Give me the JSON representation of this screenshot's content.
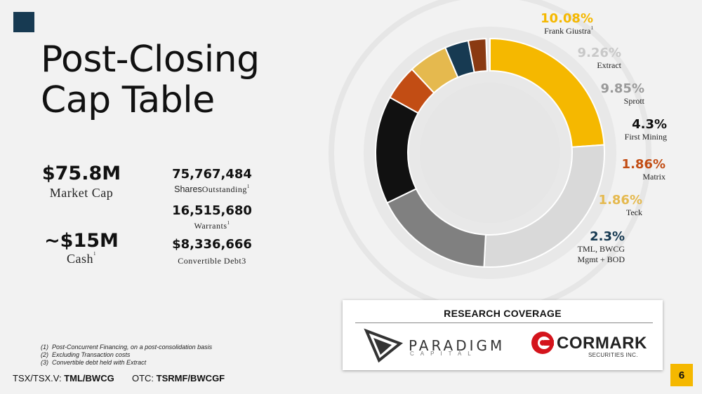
{
  "title": {
    "line1": "Post-Closing",
    "line2": "Cap Table"
  },
  "stats": {
    "market_cap_value": "$75.8M",
    "market_cap_label": "Market Cap",
    "cash_value": "~$15M",
    "cash_label": "Cash",
    "cash_sup": "1",
    "shares_value": "75,767,484",
    "shares_label_a": "Shares",
    "shares_label_b": "Outstanding",
    "shares_sup": "1",
    "warrants_value": "16,515,680",
    "warrants_label": "Warrants",
    "warrants_sup": "1",
    "debt_value": "$8,336,666",
    "debt_label": "Convertible Debt3"
  },
  "chart_data": {
    "type": "pie",
    "style": "donut",
    "slices": [
      {
        "pct": 10.08,
        "label": "Frank Giustra",
        "sup": "1",
        "color": "#f5b800",
        "label_color": "#f5b800"
      },
      {
        "pct": 9.26,
        "label": "Extract",
        "color": "#d9d9d9",
        "label_color": "#c8c8c8"
      },
      {
        "pct": 9.85,
        "label": "Sprott",
        "color": "#808080",
        "label_color": "#9a9a9a"
      },
      {
        "pct": 4.3,
        "label": "First Mining",
        "color": "#111111",
        "label_color": "#111111"
      },
      {
        "pct": 1.86,
        "label": "Matrix",
        "color": "#c24d14",
        "label_color": "#c24d14"
      },
      {
        "pct": 1.86,
        "label": "Teck",
        "color": "#e5b94e",
        "label_color": "#e5b94e"
      },
      {
        "pct": 2.3,
        "label": "TML, BWCG Mgmt + BOD",
        "color": "#173a52",
        "label_color": "#173a52"
      },
      {
        "pct": null,
        "label": "",
        "color": "#8a3a12",
        "label_color": ""
      }
    ]
  },
  "research": {
    "title": "RESEARCH COVERAGE",
    "paradigm_name": "PARADIGM",
    "paradigm_sub": "CAPITAL",
    "cormark_name": "CORMARK",
    "cormark_sub": "SECURITIES INC."
  },
  "notes": [
    {
      "num": "(1)",
      "text": "Post-Concurrent Financing, on a post-consolidation  basis"
    },
    {
      "num": "(2)",
      "text": "Excluding Transaction costs"
    },
    {
      "num": "(3)",
      "text": "Convertible debt held  with Extract"
    }
  ],
  "ticker": {
    "tsx_label": "TSX/TSX.V:",
    "tsx_value": "TML/BWCG",
    "otc_label": "OTC:",
    "otc_value": "TSRMF/BWCGF"
  },
  "page_number": "6"
}
